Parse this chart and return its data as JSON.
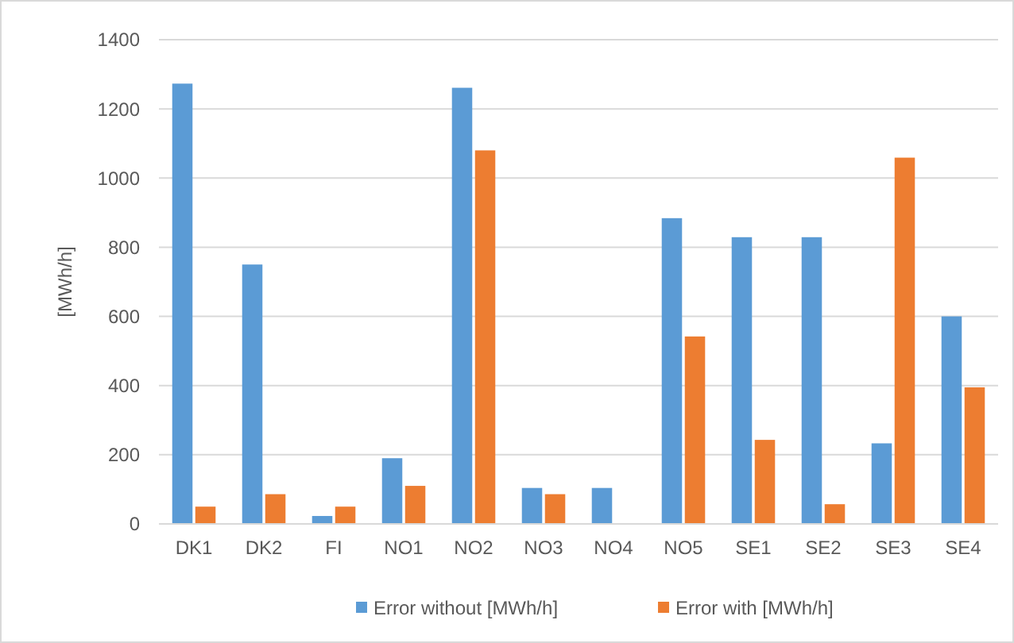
{
  "chart_data": {
    "type": "bar",
    "ylabel": "[MWh/h]",
    "categories": [
      "DK1",
      "DK2",
      "FI",
      "NO1",
      "NO2",
      "NO3",
      "NO4",
      "NO5",
      "SE1",
      "SE2",
      "SE3",
      "SE4"
    ],
    "series": [
      {
        "name": "Error without [MWh/h]",
        "color": "#5b9bd5",
        "values": [
          1273,
          750,
          23,
          190,
          1261,
          104,
          104,
          884,
          829,
          829,
          233,
          600
        ]
      },
      {
        "name": "Error with [MWh/h]",
        "color": "#ed7d31",
        "values": [
          50,
          86,
          50,
          110,
          1080,
          86,
          0,
          542,
          243,
          57,
          1059,
          395
        ]
      }
    ],
    "ylim": [
      0,
      1400
    ],
    "yticks": [
      0,
      200,
      400,
      600,
      800,
      1000,
      1200,
      1400
    ],
    "grid": "y",
    "legend": "bottom"
  }
}
